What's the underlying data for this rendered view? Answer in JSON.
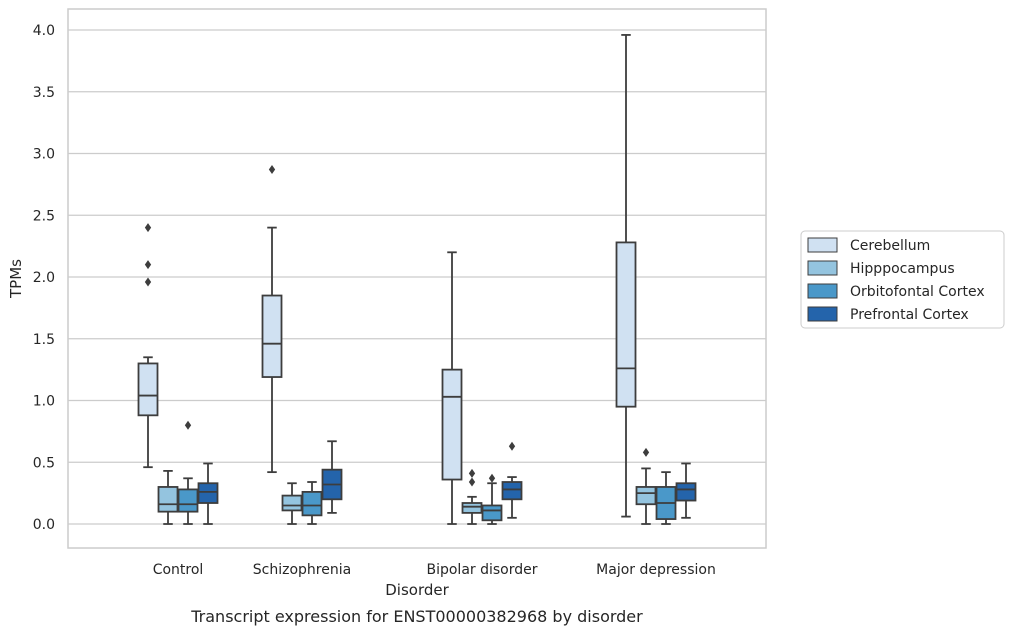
{
  "chart_data": {
    "type": "box",
    "caption": "Transcript expression for ENST00000382968 by disorder",
    "xlabel": "Disorder",
    "ylabel": "TPMs",
    "ylim": [
      -0.19,
      4.17
    ],
    "yticks": [
      0.0,
      0.5,
      1.0,
      1.5,
      2.0,
      2.5,
      3.0,
      3.5,
      4.0
    ],
    "ytick_labels": [
      "0.0",
      "0.5",
      "1.0",
      "1.5",
      "2.0",
      "2.5",
      "3.0",
      "3.5",
      "4.0"
    ],
    "grid": true,
    "legend_position": "right",
    "categories": [
      "Control",
      "Schizophrenia",
      "Bipolar disorder",
      "Major depression"
    ],
    "series": [
      {
        "name": "Cerebellum",
        "color": "#d0e1f2",
        "boxes": [
          {
            "min": 0.46,
            "q1": 0.88,
            "median": 1.04,
            "q3": 1.3,
            "max": 1.35,
            "outliers": [
              1.96,
              2.1,
              2.4
            ]
          },
          {
            "min": 0.42,
            "q1": 1.19,
            "median": 1.46,
            "q3": 1.85,
            "max": 2.4,
            "outliers": [
              2.87
            ]
          },
          {
            "min": 0.0,
            "q1": 0.36,
            "median": 1.03,
            "q3": 1.25,
            "max": 2.2,
            "outliers": []
          },
          {
            "min": 0.06,
            "q1": 0.95,
            "median": 1.26,
            "q3": 2.28,
            "max": 3.96,
            "outliers": []
          }
        ]
      },
      {
        "name": "Hipppocampus",
        "color": "#94c4df",
        "boxes": [
          {
            "min": 0.0,
            "q1": 0.1,
            "median": 0.16,
            "q3": 0.3,
            "max": 0.43,
            "outliers": []
          },
          {
            "min": 0.0,
            "q1": 0.11,
            "median": 0.15,
            "q3": 0.23,
            "max": 0.33,
            "outliers": []
          },
          {
            "min": 0.0,
            "q1": 0.09,
            "median": 0.14,
            "q3": 0.17,
            "max": 0.22,
            "outliers": [
              0.34,
              0.41
            ]
          },
          {
            "min": 0.0,
            "q1": 0.16,
            "median": 0.25,
            "q3": 0.3,
            "max": 0.45,
            "outliers": [
              0.58
            ]
          }
        ]
      },
      {
        "name": "Orbitofontal Cortex",
        "color": "#4a98c9",
        "boxes": [
          {
            "min": 0.0,
            "q1": 0.1,
            "median": 0.16,
            "q3": 0.28,
            "max": 0.37,
            "outliers": [
              0.8
            ]
          },
          {
            "min": 0.0,
            "q1": 0.07,
            "median": 0.15,
            "q3": 0.26,
            "max": 0.34,
            "outliers": []
          },
          {
            "min": 0.0,
            "q1": 0.03,
            "median": 0.11,
            "q3": 0.15,
            "max": 0.33,
            "outliers": [
              0.37
            ]
          },
          {
            "min": 0.0,
            "q1": 0.04,
            "median": 0.17,
            "q3": 0.3,
            "max": 0.42,
            "outliers": []
          }
        ]
      },
      {
        "name": "Prefrontal Cortex",
        "color": "#2464ab",
        "boxes": [
          {
            "min": 0.0,
            "q1": 0.17,
            "median": 0.26,
            "q3": 0.33,
            "max": 0.49,
            "outliers": []
          },
          {
            "min": 0.09,
            "q1": 0.2,
            "median": 0.32,
            "q3": 0.44,
            "max": 0.67,
            "outliers": []
          },
          {
            "min": 0.05,
            "q1": 0.2,
            "median": 0.28,
            "q3": 0.34,
            "max": 0.38,
            "outliers": [
              0.63
            ]
          },
          {
            "min": 0.05,
            "q1": 0.19,
            "median": 0.28,
            "q3": 0.33,
            "max": 0.49,
            "outliers": []
          }
        ]
      }
    ]
  }
}
